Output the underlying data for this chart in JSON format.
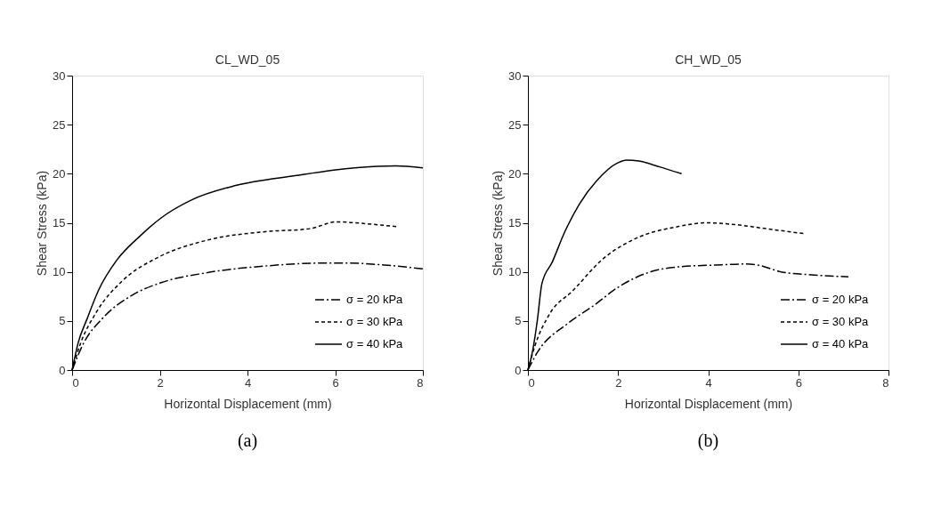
{
  "chart_data": [
    {
      "type": "line",
      "title": "CL_WD_05",
      "xlabel": "Horizontal Displacement (mm)",
      "ylabel": "Shear Stress (kPa)",
      "xlim": [
        0,
        8
      ],
      "xticks": [
        0,
        2,
        4,
        6,
        8
      ],
      "ylim": [
        0,
        30
      ],
      "yticks": [
        0,
        5,
        10,
        15,
        20,
        25,
        30
      ],
      "grid": false,
      "legend": "bottom right",
      "marker": "none",
      "annotations": [
        "(a)"
      ],
      "series": [
        {
          "name": "σ = 20 kPa",
          "color": "#000000",
          "line_style": "dashdot",
          "x": [
            0,
            0.27,
            0.68,
            1.36,
            2.03,
            3.05,
            4.41,
            5.76,
            6.24,
            7.12,
            8
          ],
          "values": [
            0,
            2.8,
            5.2,
            7.6,
            8.9,
            9.9,
            10.6,
            10.9,
            10.9,
            10.7,
            10.3
          ]
        },
        {
          "name": "σ = 30 kPa",
          "color": "#000000",
          "line_style": "dashed",
          "x": [
            0,
            0.2,
            0.54,
            1.15,
            1.97,
            3.05,
            4.41,
            5.42,
            6.03,
            6.44,
            7.42
          ],
          "values": [
            0,
            2.8,
            5.8,
            9.1,
            11.5,
            13.2,
            14.1,
            14.4,
            15.1,
            15.0,
            14.6
          ]
        },
        {
          "name": "σ = 40 kPa",
          "color": "#000000",
          "line_style": "solid",
          "x": [
            0,
            0.14,
            0.34,
            0.61,
            1.02,
            1.56,
            2.03,
            2.71,
            3.73,
            5.08,
            6.44,
            7.39,
            8
          ],
          "values": [
            0,
            2.8,
            5.2,
            8.2,
            11.2,
            13.7,
            15.5,
            17.3,
            18.8,
            19.8,
            20.6,
            20.8,
            20.6
          ]
        }
      ]
    },
    {
      "type": "line",
      "title": "CH_WD_05",
      "xlabel": "Horizontal Displacement (mm)",
      "ylabel": "Shear Stress (kPa)",
      "xlim": [
        0,
        8
      ],
      "xticks": [
        0,
        2,
        4,
        6,
        8
      ],
      "ylim": [
        0,
        30
      ],
      "yticks": [
        0,
        5,
        10,
        15,
        20,
        25,
        30
      ],
      "grid": false,
      "legend": "bottom right",
      "marker": "none",
      "annotations": [
        "(b)"
      ],
      "series": [
        {
          "name": "σ = 20 kPa",
          "color": "#000000",
          "line_style": "dashdot",
          "x": [
            0,
            0.21,
            0.87,
            1.47,
            1.99,
            2.79,
            3.31,
            4.17,
            4.83,
            5.1,
            5.62,
            6.28,
            7.11
          ],
          "values": [
            0,
            1.8,
            4.7,
            6.6,
            8.4,
            10.1,
            10.5,
            10.7,
            10.8,
            10.7,
            10.0,
            9.7,
            9.5
          ]
        },
        {
          "name": "σ = 30 kPa",
          "color": "#000000",
          "line_style": "dashed",
          "x": [
            0,
            0.15,
            0.48,
            1.0,
            1.66,
            2.39,
            3.31,
            3.97,
            4.63,
            5.29,
            6.12
          ],
          "values": [
            0,
            2.4,
            5.7,
            8.1,
            11.3,
            13.4,
            14.6,
            15.0,
            14.8,
            14.4,
            13.9
          ]
        },
        {
          "name": "σ = 40 kPa",
          "color": "#000000",
          "line_style": "solid",
          "x": [
            0,
            0.11,
            0.21,
            0.31,
            0.54,
            0.81,
            1.14,
            1.53,
            1.99,
            2.19,
            2.46,
            2.92,
            3.41
          ],
          "values": [
            0,
            2.1,
            5.1,
            8.8,
            11.0,
            14.0,
            16.9,
            19.3,
            21.1,
            21.4,
            21.3,
            20.7,
            20.0
          ]
        }
      ]
    }
  ]
}
